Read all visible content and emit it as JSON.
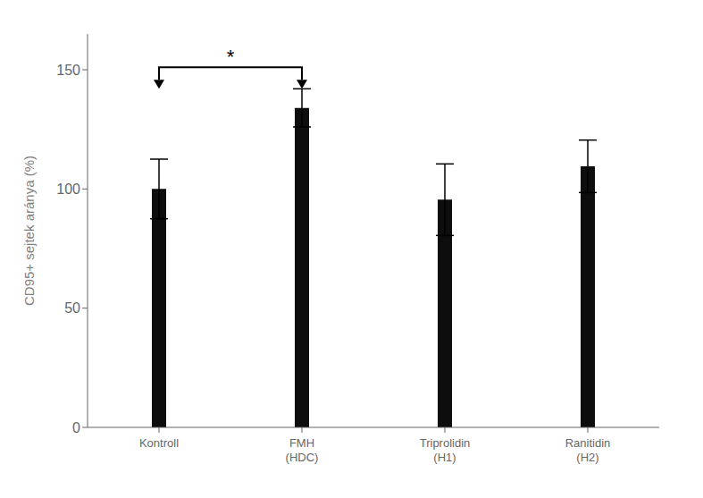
{
  "chart_data": {
    "type": "bar",
    "categories": [
      "Kontroll",
      "FMH\n(HDC)",
      "Triprolidin\n(H1)",
      "Ranitidin\n(H2)"
    ],
    "values": [
      100.0,
      134.0,
      95.5,
      109.5
    ],
    "errors": [
      12.5,
      8.0,
      15.0,
      11.0
    ],
    "color": "#0d0d0d",
    "ylim": [
      0,
      165
    ],
    "yticks": [
      0,
      50,
      100,
      150
    ],
    "y_label": "CD95+ sejtek aránya (%)",
    "annotations": [
      {
        "text": "*",
        "from": "Kontroll",
        "to": "FMH\n(HDC)",
        "y": 151
      }
    ]
  }
}
